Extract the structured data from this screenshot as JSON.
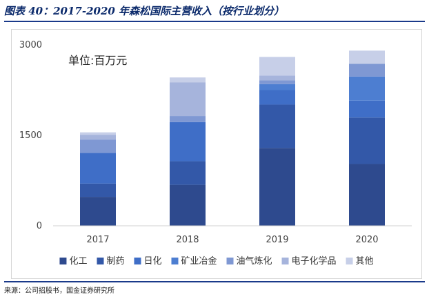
{
  "figure": {
    "title": "图表 40：2017-2020 年森松国际主营收入（按行业划分）",
    "source": "来源：公司招股书，国金证券研究所"
  },
  "chart_data": {
    "type": "bar",
    "stacked": true,
    "unit_label": "单位:百万元",
    "categories": [
      "2017",
      "2018",
      "2019",
      "2020"
    ],
    "ylim": [
      0,
      3000
    ],
    "yticks": [
      0,
      1500,
      3000
    ],
    "grid": false,
    "legend_position": "bottom",
    "series": [
      {
        "name": "化工",
        "color": "#2e4a8e",
        "values": [
          480,
          680,
          1290,
          1025
        ]
      },
      {
        "name": "制药",
        "color": "#3358a8",
        "values": [
          220,
          390,
          720,
          770
        ]
      },
      {
        "name": "日化",
        "color": "#3f6ec7",
        "values": [
          510,
          650,
          240,
          280
        ]
      },
      {
        "name": "矿业冶金",
        "color": "#4d7ed1",
        "values": [
          0,
          0,
          100,
          400
        ]
      },
      {
        "name": "油气炼化",
        "color": "#7f98d3",
        "values": [
          220,
          100,
          60,
          210
        ]
      },
      {
        "name": "电子化学品",
        "color": "#a6b4dc",
        "values": [
          80,
          560,
          80,
          0
        ]
      },
      {
        "name": "其他",
        "color": "#c7cfe8",
        "values": [
          40,
          80,
          310,
          220
        ]
      }
    ]
  }
}
